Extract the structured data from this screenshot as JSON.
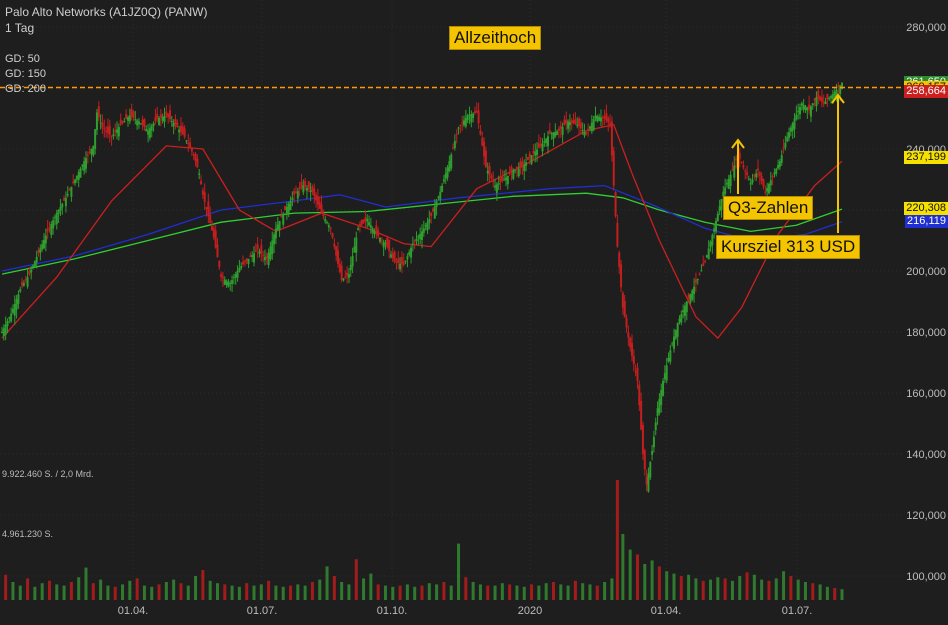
{
  "header": {
    "title": "Palo Alto Networks (A1JZ0Q) (PANW)",
    "interval": "1 Tag"
  },
  "moving_averages": [
    {
      "label": "GD: 50",
      "color": "#cc1f1f"
    },
    {
      "label": "GD: 150",
      "color": "#1f2fd0"
    },
    {
      "label": "GD: 200",
      "color": "#2fd02f"
    }
  ],
  "annotations": {
    "ath": "Allzeithoch",
    "q3": "Q3-Zahlen",
    "target": "Kursziel 313 USD"
  },
  "price_tags": [
    {
      "text": "261,650",
      "value": 261650,
      "bg": "#2e8b2e",
      "fg": "#ffffff"
    },
    {
      "text": "260,157",
      "value": 260157,
      "bg": "#f5c400",
      "fg": "#111111"
    },
    {
      "text": "258,664",
      "value": 258664,
      "bg": "#cc1f1f",
      "fg": "#ffffff"
    },
    {
      "text": "237,199",
      "value": 237199,
      "bg": "#f5e000",
      "fg": "#111111"
    },
    {
      "text": "220,308",
      "value": 220308,
      "bg": "#f5e000",
      "fg": "#111111"
    },
    {
      "text": "216,119",
      "value": 216119,
      "bg": "#1f2fd0",
      "fg": "#ffffff"
    }
  ],
  "volume_labels": [
    "9.922.460 S. / 2,0 Mrd.",
    "4.961.230 S."
  ],
  "colors": {
    "up": "#2e9e2e",
    "down": "#c41f1f",
    "ath_line": "#ff9900",
    "grid": "#2c2c2c"
  },
  "chart_data": {
    "type": "candlestick",
    "title": "Palo Alto Networks (A1JZ0Q) (PANW)",
    "y_ticks": [
      "280,000",
      "260,000",
      "240,000",
      "220,000",
      "200,000",
      "180,000",
      "160,000",
      "140,000",
      "120,000",
      "100,000"
    ],
    "y_tick_values": [
      280000,
      260000,
      240000,
      220000,
      200000,
      180000,
      160000,
      140000,
      120000,
      100000
    ],
    "x_ticks": [
      "01.04.",
      "01.07.",
      "01.10.",
      "2020",
      "01.04.",
      "01.07."
    ],
    "ath_level": 260157,
    "price_path": [
      [
        0,
        180000
      ],
      [
        5,
        186000
      ],
      [
        10,
        194000
      ],
      [
        15,
        199000
      ],
      [
        20,
        206000
      ],
      [
        25,
        213000
      ],
      [
        30,
        219000
      ],
      [
        35,
        224000
      ],
      [
        40,
        230000
      ],
      [
        45,
        236000
      ],
      [
        50,
        241000
      ],
      [
        52,
        252000
      ],
      [
        55,
        247000
      ],
      [
        60,
        244000
      ],
      [
        65,
        248000
      ],
      [
        70,
        251000
      ],
      [
        75,
        249000
      ],
      [
        80,
        246000
      ],
      [
        85,
        250000
      ],
      [
        90,
        251000
      ],
      [
        95,
        248000
      ],
      [
        100,
        244000
      ],
      [
        105,
        238000
      ],
      [
        108,
        232000
      ],
      [
        110,
        225000
      ],
      [
        113,
        218000
      ],
      [
        116,
        211000
      ],
      [
        120,
        198000
      ],
      [
        125,
        196000
      ],
      [
        130,
        201000
      ],
      [
        135,
        204000
      ],
      [
        140,
        207000
      ],
      [
        145,
        204000
      ],
      [
        150,
        214000
      ],
      [
        155,
        220000
      ],
      [
        160,
        225000
      ],
      [
        165,
        228000
      ],
      [
        170,
        226000
      ],
      [
        175,
        219000
      ],
      [
        180,
        214000
      ],
      [
        183,
        205000
      ],
      [
        186,
        197000
      ],
      [
        190,
        199000
      ],
      [
        195,
        214000
      ],
      [
        200,
        217000
      ],
      [
        205,
        212000
      ],
      [
        210,
        209000
      ],
      [
        215,
        203000
      ],
      [
        220,
        202000
      ],
      [
        225,
        209000
      ],
      [
        230,
        213000
      ],
      [
        235,
        218000
      ],
      [
        240,
        226000
      ],
      [
        245,
        236000
      ],
      [
        250,
        247000
      ],
      [
        255,
        251000
      ],
      [
        260,
        252000
      ],
      [
        265,
        234000
      ],
      [
        270,
        228000
      ],
      [
        275,
        230000
      ],
      [
        280,
        233000
      ],
      [
        285,
        234000
      ],
      [
        290,
        238000
      ],
      [
        295,
        241000
      ],
      [
        300,
        245000
      ],
      [
        305,
        246000
      ],
      [
        310,
        249000
      ],
      [
        315,
        248000
      ],
      [
        320,
        245000
      ],
      [
        325,
        251000
      ],
      [
        330,
        250000
      ],
      [
        333,
        248000
      ],
      [
        337,
        208000
      ],
      [
        340,
        188000
      ],
      [
        344,
        175000
      ],
      [
        348,
        164000
      ],
      [
        351,
        140000
      ],
      [
        353,
        130000
      ],
      [
        356,
        141000
      ],
      [
        359,
        155000
      ],
      [
        362,
        164000
      ],
      [
        366,
        174000
      ],
      [
        370,
        183000
      ],
      [
        375,
        190000
      ],
      [
        380,
        196000
      ],
      [
        385,
        203000
      ],
      [
        390,
        214000
      ],
      [
        395,
        226000
      ],
      [
        400,
        233000
      ],
      [
        403,
        238000
      ],
      [
        406,
        234000
      ],
      [
        410,
        229000
      ],
      [
        414,
        233000
      ],
      [
        418,
        226000
      ],
      [
        422,
        231000
      ],
      [
        426,
        236000
      ],
      [
        430,
        244000
      ],
      [
        434,
        250000
      ],
      [
        438,
        255000
      ],
      [
        442,
        253000
      ],
      [
        446,
        257000
      ],
      [
        450,
        255000
      ],
      [
        455,
        258000
      ],
      [
        460,
        261650
      ]
    ],
    "ma50": [
      [
        0,
        178000
      ],
      [
        30,
        198000
      ],
      [
        60,
        223000
      ],
      [
        90,
        241000
      ],
      [
        110,
        240000
      ],
      [
        130,
        220000
      ],
      [
        150,
        213000
      ],
      [
        175,
        219000
      ],
      [
        200,
        214000
      ],
      [
        220,
        209000
      ],
      [
        235,
        208000
      ],
      [
        260,
        227000
      ],
      [
        290,
        236000
      ],
      [
        320,
        246000
      ],
      [
        335,
        248000
      ],
      [
        345,
        232000
      ],
      [
        360,
        210000
      ],
      [
        380,
        185000
      ],
      [
        392,
        178000
      ],
      [
        405,
        188000
      ],
      [
        425,
        212000
      ],
      [
        445,
        228000
      ],
      [
        460,
        236000
      ]
    ],
    "ma150": [
      [
        0,
        200000
      ],
      [
        40,
        205000
      ],
      [
        80,
        212000
      ],
      [
        120,
        220000
      ],
      [
        160,
        223000
      ],
      [
        185,
        225000
      ],
      [
        210,
        221000
      ],
      [
        250,
        224000
      ],
      [
        300,
        227000
      ],
      [
        330,
        228000
      ],
      [
        355,
        222000
      ],
      [
        385,
        214000
      ],
      [
        410,
        210000
      ],
      [
        440,
        212000
      ],
      [
        460,
        216119
      ]
    ],
    "ma200": [
      [
        0,
        199000
      ],
      [
        40,
        204000
      ],
      [
        80,
        210000
      ],
      [
        120,
        216000
      ],
      [
        160,
        219000
      ],
      [
        200,
        219500
      ],
      [
        240,
        222000
      ],
      [
        280,
        224500
      ],
      [
        320,
        225500
      ],
      [
        340,
        224000
      ],
      [
        360,
        220000
      ],
      [
        385,
        216000
      ],
      [
        410,
        213000
      ],
      [
        435,
        215000
      ],
      [
        460,
        220308
      ]
    ],
    "volume": [
      [
        2,
        0.21
      ],
      [
        6,
        0.15
      ],
      [
        10,
        0.12
      ],
      [
        14,
        0.18
      ],
      [
        18,
        0.11
      ],
      [
        22,
        0.14
      ],
      [
        26,
        0.16
      ],
      [
        30,
        0.13
      ],
      [
        34,
        0.12
      ],
      [
        38,
        0.15
      ],
      [
        42,
        0.19
      ],
      [
        46,
        0.27
      ],
      [
        50,
        0.14
      ],
      [
        54,
        0.17
      ],
      [
        58,
        0.12
      ],
      [
        62,
        0.11
      ],
      [
        66,
        0.13
      ],
      [
        70,
        0.16
      ],
      [
        74,
        0.18
      ],
      [
        78,
        0.12
      ],
      [
        82,
        0.11
      ],
      [
        86,
        0.13
      ],
      [
        90,
        0.15
      ],
      [
        94,
        0.17
      ],
      [
        98,
        0.14
      ],
      [
        102,
        0.12
      ],
      [
        106,
        0.2
      ],
      [
        110,
        0.25
      ],
      [
        114,
        0.16
      ],
      [
        118,
        0.14
      ],
      [
        122,
        0.13
      ],
      [
        126,
        0.12
      ],
      [
        130,
        0.11
      ],
      [
        134,
        0.14
      ],
      [
        138,
        0.12
      ],
      [
        142,
        0.13
      ],
      [
        146,
        0.16
      ],
      [
        150,
        0.12
      ],
      [
        154,
        0.11
      ],
      [
        158,
        0.12
      ],
      [
        162,
        0.13
      ],
      [
        166,
        0.12
      ],
      [
        170,
        0.15
      ],
      [
        174,
        0.17
      ],
      [
        178,
        0.28
      ],
      [
        182,
        0.2
      ],
      [
        186,
        0.15
      ],
      [
        190,
        0.13
      ],
      [
        194,
        0.34
      ],
      [
        198,
        0.18
      ],
      [
        202,
        0.22
      ],
      [
        206,
        0.13
      ],
      [
        210,
        0.12
      ],
      [
        214,
        0.11
      ],
      [
        218,
        0.12
      ],
      [
        222,
        0.13
      ],
      [
        226,
        0.11
      ],
      [
        230,
        0.12
      ],
      [
        234,
        0.14
      ],
      [
        238,
        0.13
      ],
      [
        242,
        0.15
      ],
      [
        246,
        0.12
      ],
      [
        250,
        0.47
      ],
      [
        254,
        0.19
      ],
      [
        258,
        0.15
      ],
      [
        262,
        0.13
      ],
      [
        266,
        0.12
      ],
      [
        270,
        0.12
      ],
      [
        274,
        0.14
      ],
      [
        278,
        0.13
      ],
      [
        282,
        0.12
      ],
      [
        286,
        0.11
      ],
      [
        290,
        0.13
      ],
      [
        294,
        0.12
      ],
      [
        298,
        0.14
      ],
      [
        302,
        0.15
      ],
      [
        306,
        0.13
      ],
      [
        310,
        0.12
      ],
      [
        314,
        0.16
      ],
      [
        318,
        0.14
      ],
      [
        322,
        0.13
      ],
      [
        326,
        0.12
      ],
      [
        330,
        0.15
      ],
      [
        334,
        0.18
      ],
      [
        337,
        1.0
      ],
      [
        340,
        0.55
      ],
      [
        344,
        0.42
      ],
      [
        348,
        0.38
      ],
      [
        352,
        0.3
      ],
      [
        356,
        0.33
      ],
      [
        360,
        0.28
      ],
      [
        364,
        0.24
      ],
      [
        368,
        0.22
      ],
      [
        372,
        0.2
      ],
      [
        376,
        0.21
      ],
      [
        380,
        0.18
      ],
      [
        384,
        0.16
      ],
      [
        388,
        0.17
      ],
      [
        392,
        0.19
      ],
      [
        396,
        0.18
      ],
      [
        400,
        0.16
      ],
      [
        404,
        0.2
      ],
      [
        408,
        0.23
      ],
      [
        412,
        0.21
      ],
      [
        416,
        0.17
      ],
      [
        420,
        0.16
      ],
      [
        424,
        0.18
      ],
      [
        428,
        0.24
      ],
      [
        432,
        0.2
      ],
      [
        436,
        0.17
      ],
      [
        440,
        0.15
      ],
      [
        444,
        0.14
      ],
      [
        448,
        0.13
      ],
      [
        452,
        0.11
      ],
      [
        456,
        0.1
      ],
      [
        460,
        0.09
      ]
    ]
  }
}
